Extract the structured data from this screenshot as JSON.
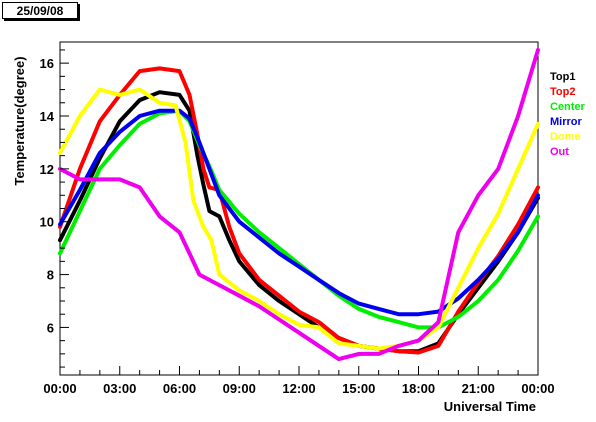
{
  "date_label": "25/09/08",
  "chart_data": {
    "type": "line",
    "title": "",
    "xlabel": "Universal Time",
    "ylabel": "Temperature(degree)",
    "xlim": [
      0,
      24
    ],
    "ylim": [
      4.2,
      16.8
    ],
    "x_tick_labels": [
      "00:00",
      "03:00",
      "06:00",
      "09:00",
      "12:00",
      "15:00",
      "18:00",
      "21:00",
      "00:00"
    ],
    "y_tick_labels": [
      "6",
      "8",
      "10",
      "12",
      "14",
      "16"
    ],
    "legend_position": "right",
    "series": [
      {
        "name": "Top1",
        "color": "#000000",
        "points": [
          [
            0,
            9.3
          ],
          [
            1,
            10.8
          ],
          [
            2,
            12.4
          ],
          [
            3,
            13.8
          ],
          [
            4,
            14.6
          ],
          [
            5,
            14.9
          ],
          [
            6,
            14.8
          ],
          [
            6.5,
            14.2
          ],
          [
            6.9,
            12.5
          ],
          [
            7.2,
            11.4
          ],
          [
            7.5,
            10.4
          ],
          [
            8,
            10.2
          ],
          [
            8.5,
            9.3
          ],
          [
            9,
            8.5
          ],
          [
            10,
            7.6
          ],
          [
            11,
            7.0
          ],
          [
            12,
            6.5
          ],
          [
            13,
            6.0
          ],
          [
            14,
            5.6
          ],
          [
            15,
            5.3
          ],
          [
            16,
            5.2
          ],
          [
            17,
            5.1
          ],
          [
            18,
            5.1
          ],
          [
            19,
            5.4
          ],
          [
            20,
            6.5
          ],
          [
            21,
            7.5
          ],
          [
            22,
            8.5
          ],
          [
            23,
            9.6
          ],
          [
            24,
            10.9
          ]
        ]
      },
      {
        "name": "Top2",
        "color": "#ff0000",
        "points": [
          [
            0,
            9.8
          ],
          [
            1,
            12.0
          ],
          [
            2,
            13.8
          ],
          [
            3,
            14.8
          ],
          [
            4,
            15.7
          ],
          [
            5,
            15.8
          ],
          [
            6,
            15.7
          ],
          [
            6.5,
            14.8
          ],
          [
            6.9,
            13.3
          ],
          [
            7.2,
            12.0
          ],
          [
            7.5,
            11.3
          ],
          [
            8,
            11.2
          ],
          [
            8.5,
            9.8
          ],
          [
            9,
            8.8
          ],
          [
            10,
            7.8
          ],
          [
            11,
            7.2
          ],
          [
            12,
            6.6
          ],
          [
            13,
            6.2
          ],
          [
            14,
            5.6
          ],
          [
            15,
            5.3
          ],
          [
            16,
            5.2
          ],
          [
            17,
            5.1
          ],
          [
            18,
            5.05
          ],
          [
            19,
            5.3
          ],
          [
            20,
            6.6
          ],
          [
            21,
            7.7
          ],
          [
            22,
            8.7
          ],
          [
            23,
            9.9
          ],
          [
            24,
            11.3
          ]
        ]
      },
      {
        "name": "Center",
        "color": "#00ee00",
        "points": [
          [
            0,
            8.8
          ],
          [
            1,
            10.4
          ],
          [
            2,
            12.0
          ],
          [
            3,
            12.9
          ],
          [
            4,
            13.7
          ],
          [
            5,
            14.1
          ],
          [
            6,
            14.2
          ],
          [
            6.5,
            13.8
          ],
          [
            7,
            12.9
          ],
          [
            7.5,
            12.1
          ],
          [
            8,
            11.2
          ],
          [
            9,
            10.3
          ],
          [
            10,
            9.6
          ],
          [
            11,
            9.0
          ],
          [
            12,
            8.4
          ],
          [
            13,
            7.8
          ],
          [
            14,
            7.2
          ],
          [
            15,
            6.7
          ],
          [
            16,
            6.4
          ],
          [
            17,
            6.2
          ],
          [
            18,
            6.0
          ],
          [
            19,
            6.0
          ],
          [
            20,
            6.4
          ],
          [
            21,
            7.0
          ],
          [
            22,
            7.8
          ],
          [
            23,
            8.9
          ],
          [
            24,
            10.2
          ]
        ]
      },
      {
        "name": "Mirror",
        "color": "#0000ee",
        "points": [
          [
            0,
            9.9
          ],
          [
            1,
            11.2
          ],
          [
            2,
            12.6
          ],
          [
            3,
            13.4
          ],
          [
            4,
            14.0
          ],
          [
            5,
            14.2
          ],
          [
            6,
            14.2
          ],
          [
            6.5,
            13.9
          ],
          [
            7,
            13.0
          ],
          [
            7.5,
            12.0
          ],
          [
            8,
            11.0
          ],
          [
            9,
            10.0
          ],
          [
            10,
            9.4
          ],
          [
            11,
            8.8
          ],
          [
            12,
            8.3
          ],
          [
            13,
            7.8
          ],
          [
            14,
            7.3
          ],
          [
            15,
            6.9
          ],
          [
            16,
            6.7
          ],
          [
            17,
            6.5
          ],
          [
            18,
            6.5
          ],
          [
            19,
            6.6
          ],
          [
            20,
            7.1
          ],
          [
            21,
            7.8
          ],
          [
            22,
            8.6
          ],
          [
            23,
            9.6
          ],
          [
            24,
            11.0
          ]
        ]
      },
      {
        "name": "Dome",
        "color": "#ffff00",
        "points": [
          [
            0,
            12.6
          ],
          [
            1,
            14.0
          ],
          [
            2,
            15.0
          ],
          [
            3,
            14.8
          ],
          [
            4,
            15.0
          ],
          [
            5,
            14.5
          ],
          [
            5.8,
            14.4
          ],
          [
            6.3,
            13.0
          ],
          [
            6.7,
            10.8
          ],
          [
            7.2,
            9.8
          ],
          [
            7.6,
            9.3
          ],
          [
            8,
            8.0
          ],
          [
            9,
            7.4
          ],
          [
            10,
            7.0
          ],
          [
            11,
            6.5
          ],
          [
            12,
            6.1
          ],
          [
            13,
            6.0
          ],
          [
            14,
            5.4
          ],
          [
            15,
            5.3
          ],
          [
            16,
            5.2
          ],
          [
            17,
            5.3
          ],
          [
            18,
            5.5
          ],
          [
            19,
            6.0
          ],
          [
            20,
            7.5
          ],
          [
            21,
            9.0
          ],
          [
            22,
            10.3
          ],
          [
            23,
            12.0
          ],
          [
            24,
            13.7
          ]
        ]
      },
      {
        "name": "Out",
        "color": "#ee00ee",
        "points": [
          [
            0,
            12.0
          ],
          [
            1,
            11.6
          ],
          [
            2,
            11.6
          ],
          [
            3,
            11.6
          ],
          [
            4,
            11.3
          ],
          [
            5,
            10.2
          ],
          [
            6,
            9.6
          ],
          [
            6.5,
            8.8
          ],
          [
            7,
            8.0
          ],
          [
            8,
            7.6
          ],
          [
            9,
            7.2
          ],
          [
            10,
            6.8
          ],
          [
            11,
            6.3
          ],
          [
            12,
            5.8
          ],
          [
            13,
            5.3
          ],
          [
            14,
            4.8
          ],
          [
            15,
            5.0
          ],
          [
            16,
            5.0
          ],
          [
            17,
            5.3
          ],
          [
            18,
            5.5
          ],
          [
            19,
            6.2
          ],
          [
            20,
            9.6
          ],
          [
            21,
            11.0
          ],
          [
            22,
            12.0
          ],
          [
            23,
            14.0
          ],
          [
            24,
            16.5
          ]
        ]
      }
    ]
  }
}
